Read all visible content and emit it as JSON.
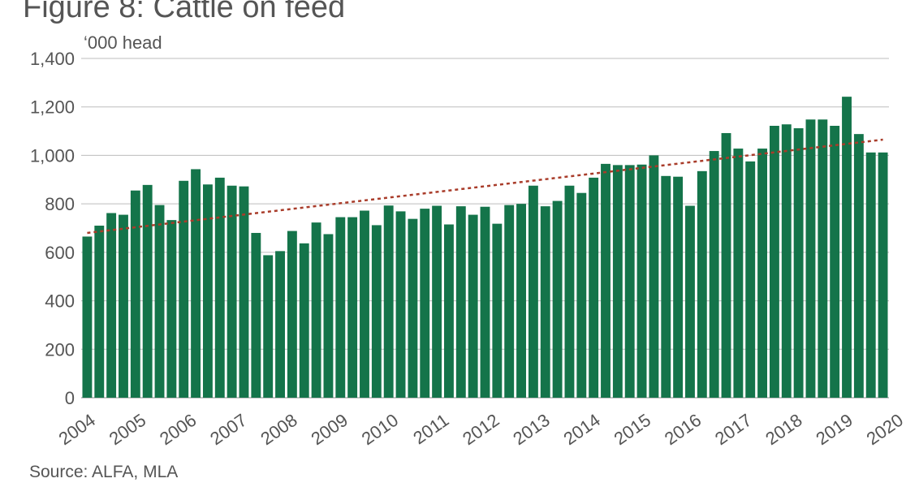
{
  "chart_data": {
    "type": "bar",
    "title": "Figure 8: Cattle on feed",
    "ylabel": "‘000 head",
    "source": "Source: ALFA, MLA",
    "ylim": [
      0,
      1400
    ],
    "yticks": [
      0,
      200,
      400,
      600,
      800,
      1000,
      1200,
      1400
    ],
    "ytick_labels": [
      "0",
      "200",
      "400",
      "600",
      "800",
      "1,000",
      "1,200",
      "1,400"
    ],
    "year_labels": [
      "2004",
      "2005",
      "2006",
      "2007",
      "2008",
      "2009",
      "2010",
      "2011",
      "2012",
      "2013",
      "2014",
      "2015",
      "2016",
      "2017",
      "2018",
      "2019",
      "2020"
    ],
    "grid": true,
    "bar_color": "#14744a",
    "trend_color": "#a93c2a",
    "trend": {
      "start": 680,
      "end": 1065
    },
    "values": [
      665,
      710,
      762,
      755,
      855,
      878,
      795,
      733,
      895,
      943,
      880,
      908,
      875,
      872,
      680,
      588,
      605,
      688,
      637,
      723,
      675,
      745,
      745,
      772,
      712,
      793,
      769,
      738,
      780,
      792,
      715,
      790,
      755,
      788,
      718,
      795,
      800,
      875,
      790,
      812,
      875,
      845,
      908,
      965,
      960,
      960,
      962,
      1000,
      915,
      912,
      792,
      935,
      1018,
      1092,
      1028,
      975,
      1028,
      1122,
      1128,
      1112,
      1148,
      1148,
      1122,
      1242,
      1088,
      1012,
      1012
    ]
  }
}
